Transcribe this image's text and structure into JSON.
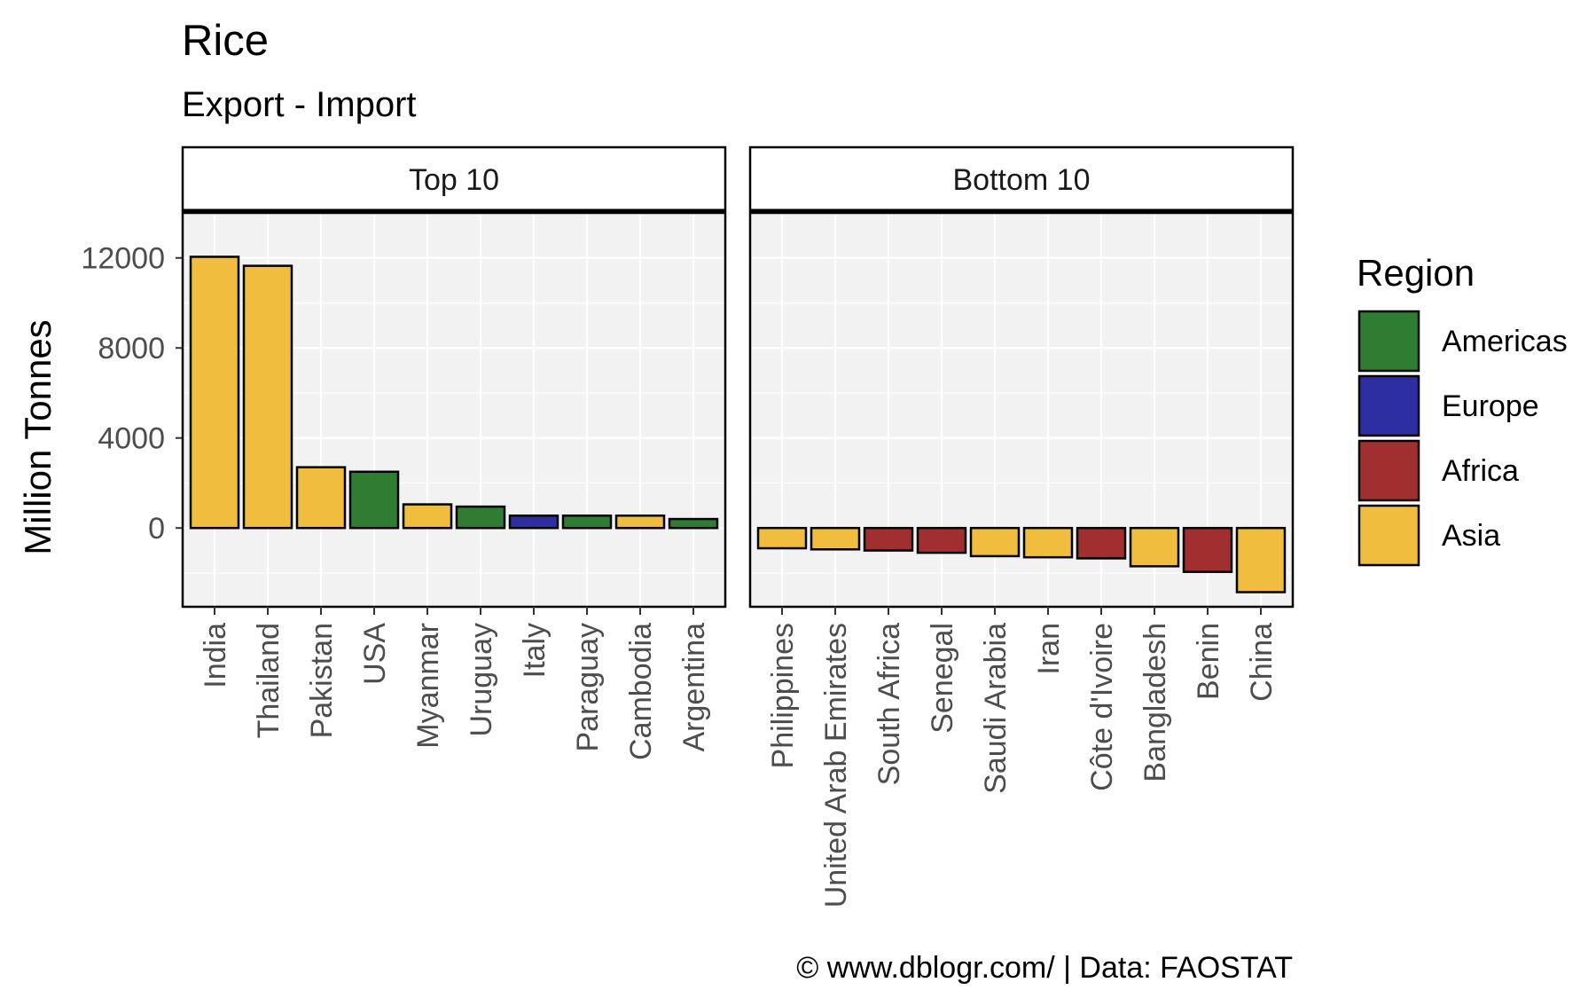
{
  "chart_data": {
    "type": "bar",
    "title": "Rice",
    "subtitle": "Export - Import",
    "ylabel": "Million Tonnes",
    "ylim": [
      -3500,
      14000
    ],
    "yticks": [
      0,
      4000,
      8000,
      12000
    ],
    "grid": true,
    "legend": {
      "title": "Region",
      "placement": "right",
      "items": [
        {
          "name": "Americas",
          "color": "#2e7d32"
        },
        {
          "name": "Europe",
          "color": "#2e2ea3"
        },
        {
          "name": "Africa",
          "color": "#a22f2f"
        },
        {
          "name": "Asia",
          "color": "#f0bd3e"
        }
      ]
    },
    "panels": [
      {
        "name": "Top 10",
        "categories": [
          "India",
          "Thailand",
          "Pakistan",
          "USA",
          "Myanmar",
          "Uruguay",
          "Italy",
          "Paraguay",
          "Cambodia",
          "Argentina"
        ],
        "values": [
          12050,
          11650,
          2700,
          2500,
          1050,
          950,
          550,
          550,
          550,
          400
        ],
        "regions": [
          "Asia",
          "Asia",
          "Asia",
          "Americas",
          "Asia",
          "Americas",
          "Europe",
          "Americas",
          "Asia",
          "Americas"
        ]
      },
      {
        "name": "Bottom 10",
        "categories": [
          "Philippines",
          "United Arab Emirates",
          "South Africa",
          "Senegal",
          "Saudi Arabia",
          "Iran",
          "Côte d'Ivoire",
          "Bangladesh",
          "Benin",
          "China"
        ],
        "values": [
          -900,
          -950,
          -1000,
          -1100,
          -1250,
          -1300,
          -1350,
          -1700,
          -1950,
          -2850
        ],
        "regions": [
          "Asia",
          "Asia",
          "Africa",
          "Africa",
          "Asia",
          "Asia",
          "Africa",
          "Asia",
          "Africa",
          "Asia"
        ]
      }
    ],
    "caption": "© www.dblogr.com/  |  Data: FAOSTAT"
  }
}
